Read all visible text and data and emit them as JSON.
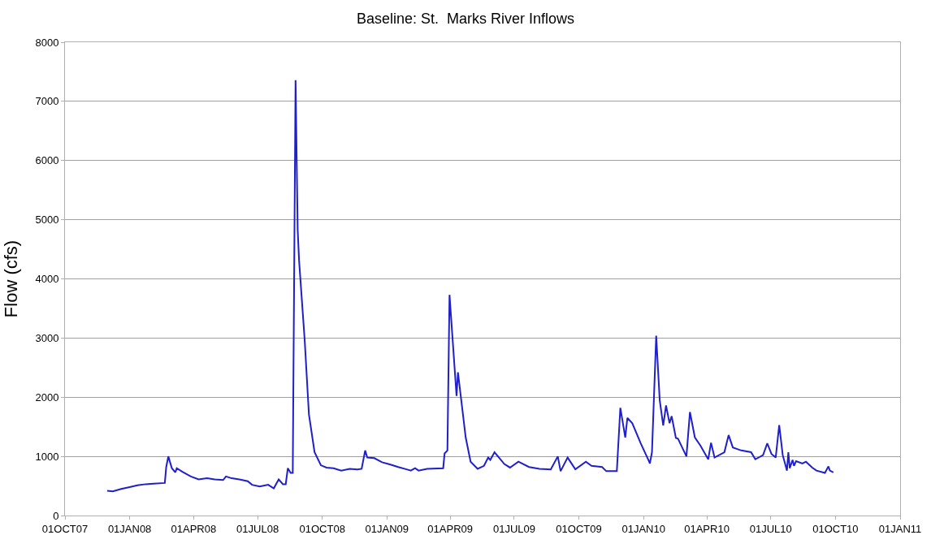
{
  "chart_data": {
    "type": "line",
    "title": "Baseline: St.  Marks River Inflows",
    "ylabel": "Flow (cfs)",
    "xlim": [
      "2007-10-01",
      "2011-01-01"
    ],
    "xticks": [
      {
        "value": "2007-10-01",
        "label": "01OCT07"
      },
      {
        "value": "2008-01-01",
        "label": "01JAN08"
      },
      {
        "value": "2008-04-01",
        "label": "01APR08"
      },
      {
        "value": "2008-07-01",
        "label": "01JUL08"
      },
      {
        "value": "2008-10-01",
        "label": "01OCT08"
      },
      {
        "value": "2009-01-01",
        "label": "01JAN09"
      },
      {
        "value": "2009-04-01",
        "label": "01APR09"
      },
      {
        "value": "2009-07-01",
        "label": "01JUL09"
      },
      {
        "value": "2009-10-01",
        "label": "01OCT09"
      },
      {
        "value": "2010-01-01",
        "label": "01JAN10"
      },
      {
        "value": "2010-04-01",
        "label": "01APR10"
      },
      {
        "value": "2010-07-01",
        "label": "01JUL10"
      },
      {
        "value": "2010-10-01",
        "label": "01OCT10"
      },
      {
        "value": "2011-01-01",
        "label": "01JAN11"
      }
    ],
    "ylim": [
      0,
      8000
    ],
    "yticks": [
      0,
      1000,
      2000,
      3000,
      4000,
      5000,
      6000,
      7000,
      8000
    ],
    "grid": "y",
    "marker": "none",
    "line_style": "solid",
    "x": [
      "2007-11-30",
      "2007-12-08",
      "2007-12-20",
      "2008-01-01",
      "2008-01-12",
      "2008-01-24",
      "2008-02-04",
      "2008-02-20",
      "2008-02-22",
      "2008-02-25",
      "2008-03-01",
      "2008-03-06",
      "2008-03-08",
      "2008-03-16",
      "2008-03-28",
      "2008-04-08",
      "2008-04-20",
      "2008-05-01",
      "2008-05-13",
      "2008-05-17",
      "2008-05-25",
      "2008-06-05",
      "2008-06-17",
      "2008-06-23",
      "2008-07-04",
      "2008-07-16",
      "2008-07-24",
      "2008-07-31",
      "2008-08-06",
      "2008-08-10",
      "2008-08-13",
      "2008-08-17",
      "2008-08-20",
      "2008-08-24",
      "2008-08-27",
      "2008-08-29",
      "2008-09-06",
      "2008-09-12",
      "2008-09-20",
      "2008-09-29",
      "2008-10-07",
      "2008-10-17",
      "2008-10-28",
      "2008-11-09",
      "2008-11-20",
      "2008-11-26",
      "2008-12-01",
      "2008-12-04",
      "2008-12-14",
      "2008-12-25",
      "2009-01-06",
      "2009-01-17",
      "2009-01-29",
      "2009-02-04",
      "2009-02-10",
      "2009-02-15",
      "2009-02-27",
      "2009-03-22",
      "2009-03-24",
      "2009-03-28",
      "2009-03-31",
      "2009-04-10",
      "2009-04-12",
      "2009-04-23",
      "2009-04-30",
      "2009-05-10",
      "2009-05-19",
      "2009-05-25",
      "2009-05-28",
      "2009-06-03",
      "2009-06-17",
      "2009-06-25",
      "2009-07-07",
      "2009-07-22",
      "2009-08-06",
      "2009-08-22",
      "2009-09-01",
      "2009-09-05",
      "2009-09-15",
      "2009-09-26",
      "2009-10-11",
      "2009-10-19",
      "2009-11-03",
      "2009-11-09",
      "2009-11-24",
      "2009-11-29",
      "2009-12-06",
      "2009-12-09",
      "2009-12-16",
      "2009-12-28",
      "2010-01-09",
      "2010-01-10",
      "2010-01-13",
      "2010-01-19",
      "2010-01-24",
      "2010-01-29",
      "2010-02-02",
      "2010-02-07",
      "2010-02-10",
      "2010-02-16",
      "2010-02-19",
      "2010-03-03",
      "2010-03-08",
      "2010-03-15",
      "2010-03-23",
      "2010-04-03",
      "2010-04-07",
      "2010-04-12",
      "2010-04-26",
      "2010-05-02",
      "2010-05-08",
      "2010-05-20",
      "2010-06-03",
      "2010-06-09",
      "2010-06-20",
      "2010-06-26",
      "2010-07-02",
      "2010-07-08",
      "2010-07-13",
      "2010-07-18",
      "2010-07-24",
      "2010-07-26",
      "2010-07-28",
      "2010-08-01",
      "2010-08-03",
      "2010-08-06",
      "2010-08-15",
      "2010-08-20",
      "2010-08-29",
      "2010-09-04",
      "2010-09-16",
      "2010-09-21",
      "2010-09-23",
      "2010-09-28"
    ],
    "series": [
      {
        "color": "#1f1fcc",
        "values": [
          420,
          410,
          450,
          480,
          510,
          530,
          540,
          550,
          820,
          1000,
          800,
          730,
          800,
          740,
          660,
          610,
          630,
          610,
          600,
          660,
          630,
          610,
          580,
          520,
          490,
          520,
          460,
          610,
          530,
          530,
          800,
          720,
          720,
          7360,
          4830,
          4310,
          2960,
          1710,
          1070,
          850,
          810,
          800,
          760,
          790,
          780,
          790,
          1100,
          980,
          970,
          900,
          860,
          820,
          780,
          760,
          800,
          760,
          790,
          800,
          1050,
          1100,
          3730,
          2020,
          2420,
          1320,
          910,
          790,
          840,
          980,
          940,
          1070,
          870,
          810,
          910,
          820,
          790,
          780,
          1000,
          750,
          980,
          780,
          910,
          840,
          820,
          750,
          750,
          1820,
          1320,
          1650,
          1560,
          1220,
          910,
          880,
          1070,
          3040,
          1950,
          1520,
          1860,
          1560,
          1680,
          1310,
          1300,
          1000,
          1750,
          1320,
          1180,
          950,
          1230,
          980,
          1070,
          1360,
          1150,
          1100,
          1070,
          950,
          1020,
          1220,
          1040,
          980,
          1530,
          1020,
          760,
          1070,
          800,
          940,
          840,
          920,
          880,
          910,
          810,
          760,
          720,
          830,
          760,
          730
        ]
      }
    ]
  }
}
